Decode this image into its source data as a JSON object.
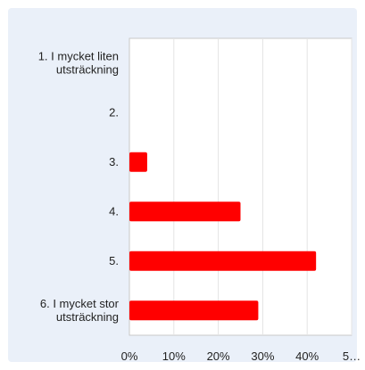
{
  "chart_data": {
    "type": "bar",
    "orientation": "horizontal",
    "categories": [
      [
        "1. I mycket liten",
        "utsträckning"
      ],
      [
        "2."
      ],
      [
        "3."
      ],
      [
        "4."
      ],
      [
        "5."
      ],
      [
        "6. I mycket stor",
        "utsträckning"
      ]
    ],
    "values": [
      0,
      0,
      4,
      25,
      42,
      29
    ],
    "x_ticks": [
      "0%",
      "10%",
      "20%",
      "30%",
      "40%",
      "5…"
    ],
    "xlim": [
      0,
      50
    ],
    "bar_color": "#ff0000",
    "grid": true
  }
}
